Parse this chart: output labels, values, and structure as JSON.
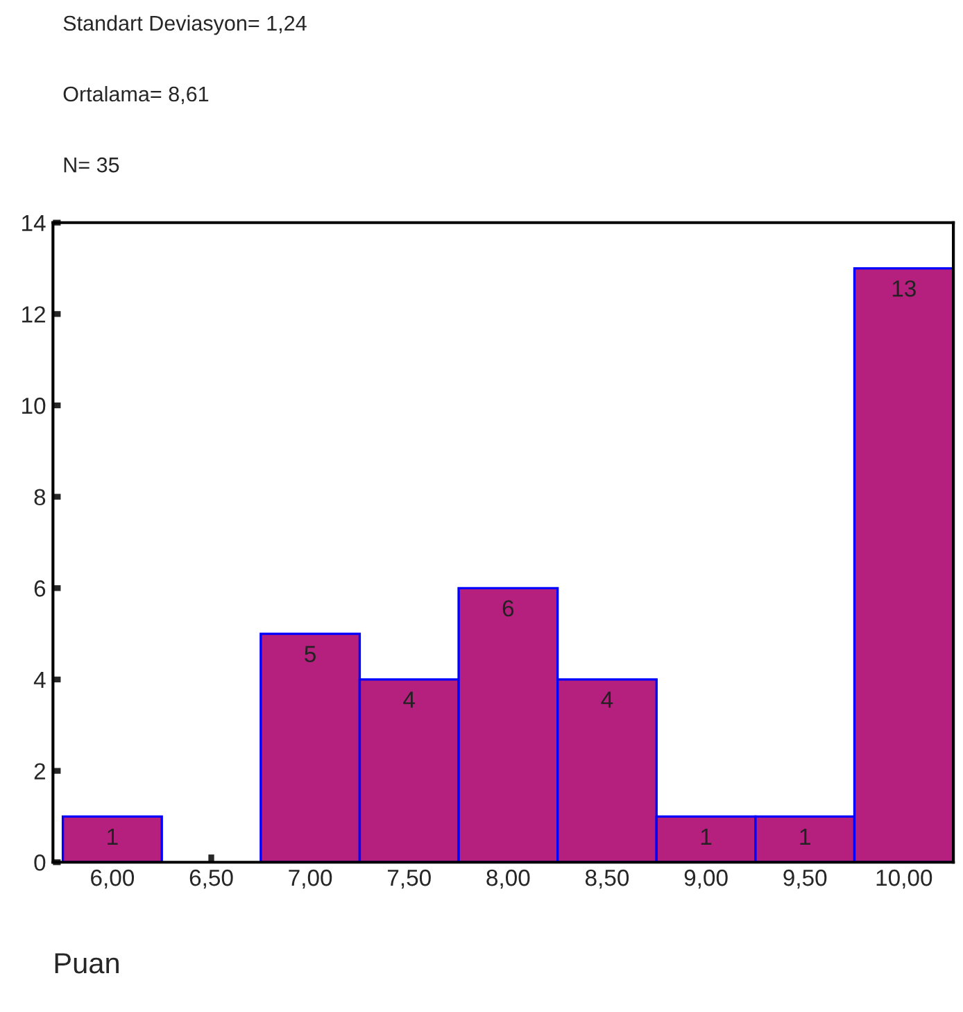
{
  "chart_data": {
    "type": "histogram",
    "annotations": [
      "Standart Deviasyon= 1,24",
      "Ortalama= 8,61",
      "N= 35"
    ],
    "xlabel": "Puan",
    "bins": [
      5.75,
      6.25,
      6.75,
      7.25,
      7.75,
      8.25,
      8.75,
      9.25,
      9.75,
      10.25
    ],
    "values": [
      1,
      0,
      5,
      4,
      6,
      4,
      1,
      1,
      13
    ],
    "value_labels": [
      "1",
      null,
      "5",
      "4",
      "6",
      "4",
      "1",
      "1",
      "13"
    ],
    "color": "#b51f7d",
    "xlim": [
      5.7,
      10.25
    ],
    "xticks": [
      {
        "value": 6,
        "label": "6,00"
      },
      {
        "value": 6.5,
        "label": "6,50"
      },
      {
        "value": 7,
        "label": "7,00"
      },
      {
        "value": 7.5,
        "label": "7,50"
      },
      {
        "value": 8,
        "label": "8,00"
      },
      {
        "value": 8.5,
        "label": "8,50"
      },
      {
        "value": 9,
        "label": "9,00"
      },
      {
        "value": 9.5,
        "label": "9,50"
      },
      {
        "value": 10,
        "label": "10,00"
      }
    ],
    "ylim": [
      0,
      14
    ],
    "yticks": [
      0,
      2,
      4,
      6,
      8,
      10,
      12,
      14
    ],
    "grid": false
  }
}
